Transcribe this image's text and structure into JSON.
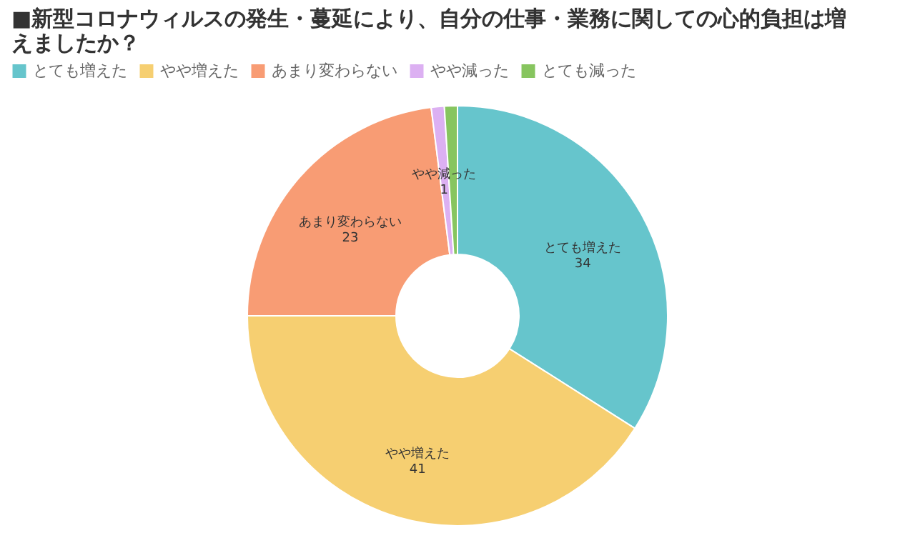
{
  "chart_data": {
    "type": "donut",
    "title": "■新型コロナウィルスの発生・蔓延により、自分の仕事・業務に関しての心的負担は増えましたか？",
    "categories": [
      "とても増えた",
      "やや増えた",
      "あまり変わらない",
      "やや減った",
      "とても減った"
    ],
    "values": [
      34,
      41,
      23,
      1,
      1
    ],
    "colors": [
      "#66c5cc",
      "#f6cf71",
      "#f89c74",
      "#dcb0f2",
      "#87c55f"
    ],
    "value_labels": [
      "34",
      "41",
      "23",
      "1",
      null
    ],
    "legend": "top left"
  }
}
